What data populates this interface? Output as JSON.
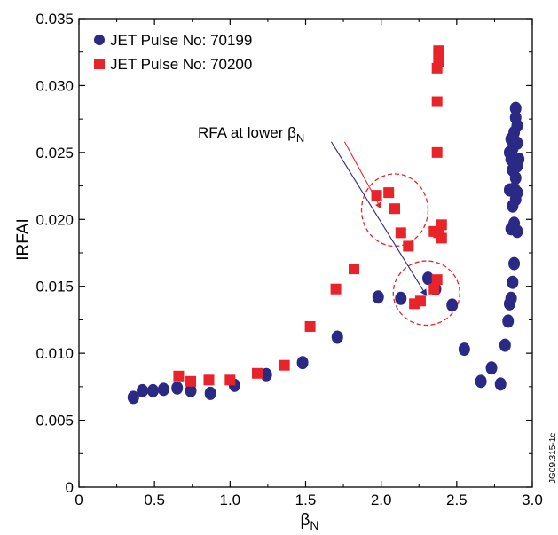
{
  "chart_data": {
    "type": "scatter",
    "xlabel": "βN",
    "ylabel": "IRFAI",
    "xlim": [
      0,
      3.0
    ],
    "ylim": [
      0,
      0.035
    ],
    "x_ticks": [
      "0",
      "0.5",
      "1.0",
      "1.5",
      "2.0",
      "2.5",
      "3.0"
    ],
    "y_ticks": [
      "0",
      "0.005",
      "0.010",
      "0.015",
      "0.020",
      "0.025",
      "0.030",
      "0.035"
    ],
    "grid": false,
    "legend_position": "top-left",
    "series": [
      {
        "name": "JET Pulse No: 70199",
        "marker": "ellipse",
        "color": "#2a2a86",
        "points": [
          [
            0.36,
            0.0067
          ],
          [
            0.42,
            0.0072
          ],
          [
            0.49,
            0.0072
          ],
          [
            0.56,
            0.0073
          ],
          [
            0.65,
            0.0074
          ],
          [
            0.74,
            0.0072
          ],
          [
            0.87,
            0.007
          ],
          [
            1.03,
            0.0076
          ],
          [
            1.24,
            0.0084
          ],
          [
            1.48,
            0.0093
          ],
          [
            1.71,
            0.0112
          ],
          [
            1.98,
            0.0142
          ],
          [
            2.13,
            0.0141
          ],
          [
            2.31,
            0.0156
          ],
          [
            2.36,
            0.0148
          ],
          [
            2.47,
            0.0136
          ],
          [
            2.55,
            0.0103
          ],
          [
            2.66,
            0.0079
          ],
          [
            2.73,
            0.0089
          ],
          [
            2.79,
            0.0077
          ],
          [
            2.82,
            0.0106
          ],
          [
            2.84,
            0.0124
          ],
          [
            2.85,
            0.0137
          ],
          [
            2.86,
            0.0141
          ],
          [
            2.87,
            0.0153
          ],
          [
            2.88,
            0.0167
          ],
          [
            2.86,
            0.0193
          ],
          [
            2.88,
            0.0197
          ],
          [
            2.9,
            0.0191
          ],
          [
            2.87,
            0.021
          ],
          [
            2.89,
            0.0215
          ],
          [
            2.9,
            0.022
          ],
          [
            2.85,
            0.0222
          ],
          [
            2.88,
            0.0223
          ],
          [
            2.89,
            0.0231
          ],
          [
            2.87,
            0.0237
          ],
          [
            2.86,
            0.0245
          ],
          [
            2.9,
            0.024
          ],
          [
            2.85,
            0.025
          ],
          [
            2.87,
            0.0253
          ],
          [
            2.91,
            0.0245
          ],
          [
            2.9,
            0.0257
          ],
          [
            2.86,
            0.026
          ],
          [
            2.88,
            0.0265
          ],
          [
            2.9,
            0.027
          ],
          [
            2.89,
            0.0276
          ],
          [
            2.89,
            0.0283
          ]
        ]
      },
      {
        "name": "JET Pulse No: 70200",
        "marker": "square",
        "color": "#e8242a",
        "points": [
          [
            0.66,
            0.0083
          ],
          [
            0.74,
            0.0079
          ],
          [
            0.86,
            0.008
          ],
          [
            1.0,
            0.008
          ],
          [
            1.18,
            0.0085
          ],
          [
            1.36,
            0.0091
          ],
          [
            1.53,
            0.012
          ],
          [
            1.7,
            0.0148
          ],
          [
            1.82,
            0.0163
          ],
          [
            1.97,
            0.0218
          ],
          [
            2.05,
            0.022
          ],
          [
            2.09,
            0.0208
          ],
          [
            2.13,
            0.019
          ],
          [
            2.18,
            0.018
          ],
          [
            2.22,
            0.0137
          ],
          [
            2.26,
            0.0139
          ],
          [
            2.35,
            0.0148
          ],
          [
            2.37,
            0.0155
          ],
          [
            2.35,
            0.0191
          ],
          [
            2.38,
            0.019
          ],
          [
            2.4,
            0.0186
          ],
          [
            2.4,
            0.0196
          ],
          [
            2.37,
            0.025
          ],
          [
            2.37,
            0.0288
          ],
          [
            2.37,
            0.0313
          ],
          [
            2.38,
            0.0318
          ],
          [
            2.38,
            0.0323
          ],
          [
            2.38,
            0.0326
          ]
        ]
      }
    ],
    "annotation": {
      "text_main": "RFA at lower β",
      "text_sub": "N",
      "arrow_red_target": [
        2.0,
        0.0208
      ],
      "arrow_blue_target": [
        2.3,
        0.0143
      ],
      "text_anchor": [
        1.2,
        0.0262
      ]
    },
    "circles": [
      {
        "cx": 2.09,
        "cy": 0.0207,
        "rx": 0.22,
        "ry": 0.0027,
        "color": "#e8242a"
      },
      {
        "cx": 2.3,
        "cy": 0.0145,
        "rx": 0.22,
        "ry": 0.0024,
        "color": "#e8242a"
      }
    ]
  },
  "figure_id": "JG09.315-1c"
}
